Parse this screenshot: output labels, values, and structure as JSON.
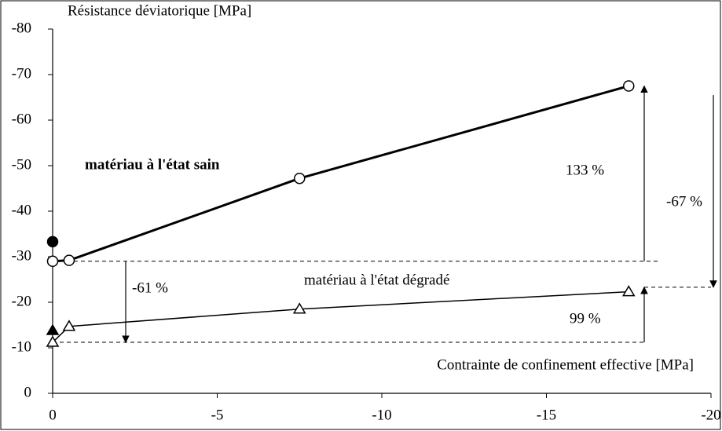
{
  "chart_data": {
    "type": "line",
    "y_label": "Résistance déviatorique [MPa]",
    "x_label": "Contrainte de confinement effective [MPa]",
    "xlim": [
      0,
      -20
    ],
    "ylim": [
      0,
      -80
    ],
    "xticks": [
      0,
      -5,
      -10,
      -15,
      -20
    ],
    "yticks": [
      0,
      -10,
      -20,
      -30,
      -40,
      -50,
      -60,
      -70,
      -80
    ],
    "series": [
      {
        "name": "matériau à l'état sain",
        "color": "#000000",
        "marker": "circle",
        "width": 3,
        "x": [
          0,
          -0.5,
          -7.5,
          -17.5
        ],
        "values": [
          -29,
          -29.2,
          -47.2,
          -67.5
        ]
      },
      {
        "name": "matériau à l'état dégradé",
        "color": "#000000",
        "marker": "triangle",
        "width": 1.5,
        "x": [
          0,
          -0.5,
          -7.5,
          -17.5
        ],
        "values": [
          -11.2,
          -14.7,
          -18.5,
          -22.3
        ]
      },
      {
        "color": "#000000",
        "marker": "filled-circle",
        "x": [
          0
        ],
        "values": [
          -33.3
        ]
      },
      {
        "color": "#000000",
        "marker": "filled-triangle",
        "x": [
          0
        ],
        "values": [
          -13.8
        ]
      }
    ],
    "annotations": [
      "133 %",
      "-67 %",
      "-61 %",
      "99 %"
    ]
  }
}
